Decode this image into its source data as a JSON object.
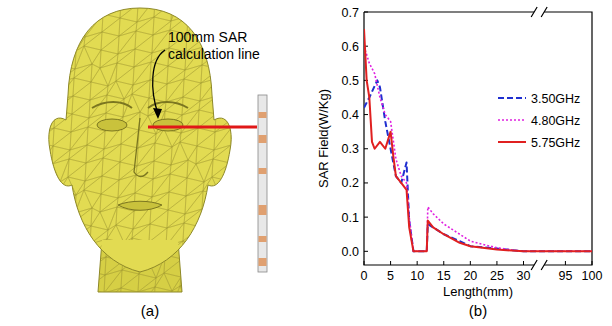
{
  "chart_data": {
    "type": "line",
    "x_label": "Length(mm)",
    "y_label": "SAR Field(W/Kg)",
    "xlim": [
      0,
      100
    ],
    "xbreak": [
      32,
      91
    ],
    "xticks": [
      0,
      5,
      10,
      15,
      20,
      25,
      30,
      95,
      100
    ],
    "ylim": [
      -0.04,
      0.7
    ],
    "yticks": [
      {
        "value": 0,
        "label": "0.0"
      },
      0.1,
      0.2,
      0.3,
      0.4,
      0.5,
      0.6,
      0.7
    ],
    "legend": "right",
    "series": [
      {
        "name": "3.50GHz",
        "color": "#1f2fd0",
        "line_style": "dashed",
        "x": [
          0,
          1,
          2.5,
          3,
          4,
          5,
          6,
          7,
          8,
          8.5,
          9.3,
          11.8,
          12,
          13,
          15,
          18,
          20,
          25,
          30,
          95,
          100
        ],
        "values": [
          0.42,
          0.45,
          0.5,
          0.48,
          0.38,
          0.3,
          0.22,
          0.2,
          0.26,
          0.09,
          0.0,
          0.0,
          0.08,
          0.07,
          0.05,
          0.03,
          0.015,
          0.008,
          0.0,
          0.0,
          0.0
        ]
      },
      {
        "name": "4.80GHz",
        "color": "#e020e0",
        "line_style": "dotted",
        "x": [
          0,
          1,
          2,
          3,
          4,
          5,
          6,
          7,
          8,
          8.5,
          9.3,
          11.8,
          12,
          13,
          15,
          18,
          20,
          25,
          30,
          95,
          100
        ],
        "values": [
          0.6,
          0.55,
          0.52,
          0.45,
          0.4,
          0.38,
          0.27,
          0.22,
          0.2,
          0.1,
          0.0,
          0.0,
          0.13,
          0.11,
          0.08,
          0.05,
          0.03,
          0.01,
          0.0,
          0.0,
          0.0
        ]
      },
      {
        "name": "5.75GHz",
        "color": "#e02020",
        "line_style": "solid",
        "x": [
          0,
          0.5,
          1,
          1.5,
          2,
          3,
          4,
          5,
          5.5,
          6,
          7,
          8,
          8.5,
          9.3,
          11.8,
          12,
          13,
          15,
          18,
          20,
          25,
          30,
          95,
          100
        ],
        "values": [
          0.65,
          0.5,
          0.45,
          0.32,
          0.3,
          0.32,
          0.3,
          0.35,
          0.28,
          0.22,
          0.2,
          0.18,
          0.07,
          0.0,
          0.0,
          0.09,
          0.07,
          0.05,
          0.025,
          0.015,
          0.005,
          0.0,
          0.0,
          0.0
        ]
      }
    ]
  },
  "panels": {
    "a": {
      "label": "(a)",
      "annotation": "100mm SAR calculation line"
    },
    "b": {
      "label": "(b)"
    }
  }
}
